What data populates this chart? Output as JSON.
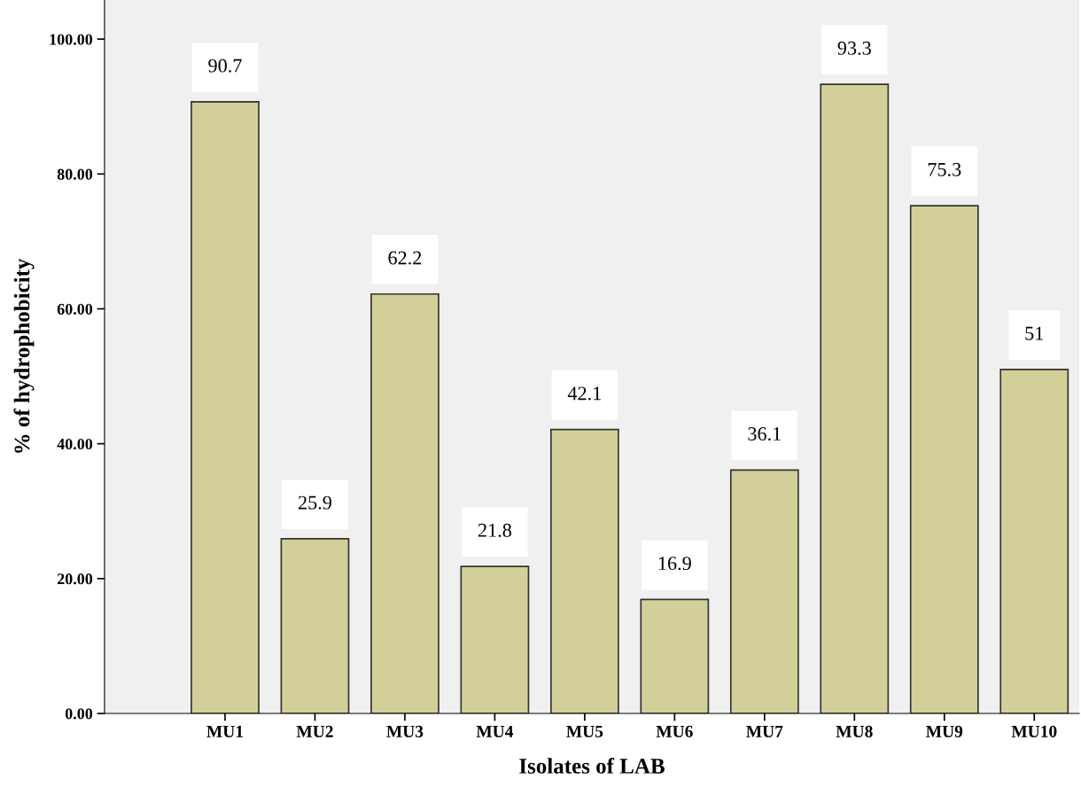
{
  "chart_data": {
    "type": "bar",
    "xlabel": "Isolates of LAB",
    "ylabel": "% of hydrophobicity",
    "categories": [
      "MU1",
      "MU2",
      "MU3",
      "MU4",
      "MU5",
      "MU6",
      "MU7",
      "MU8",
      "MU9",
      "MU10"
    ],
    "values": [
      90.7,
      25.9,
      62.2,
      21.8,
      42.1,
      16.9,
      36.1,
      93.3,
      75.3,
      51
    ],
    "color": "#d3cf98",
    "ylim": [
      0,
      105.8
    ],
    "yticks": [
      {
        "value": 0,
        "label": "0.00"
      },
      {
        "value": 20,
        "label": "20.00"
      },
      {
        "value": 40,
        "label": "40.00"
      },
      {
        "value": 60,
        "label": "60.00"
      },
      {
        "value": 80,
        "label": "80.00"
      },
      {
        "value": 100,
        "label": "100.00"
      }
    ],
    "data_labels": true,
    "grid": false
  }
}
